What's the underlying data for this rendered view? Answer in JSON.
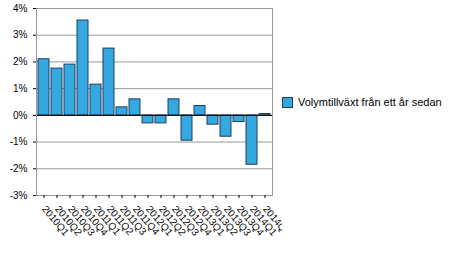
{
  "chart_data": {
    "type": "bar",
    "categories": [
      "2010Q1",
      "2010Q2",
      "2010Q3",
      "2010Q4",
      "2011Q1",
      "2011Q2",
      "2011Q3",
      "2011Q4",
      "2012Q1",
      "2012Q2",
      "2012Q3",
      "2012Q4",
      "2013Q1",
      "2013Q2",
      "2013Q3",
      "2013Q4",
      "2014Q1",
      "2014Q2"
    ],
    "series": [
      {
        "name": "Volymtillväxt från ett år sedan",
        "color": "#35a8e0",
        "values": [
          2.1,
          1.75,
          1.9,
          3.55,
          1.15,
          2.5,
          0.3,
          0.6,
          -0.3,
          -0.3,
          0.6,
          -0.95,
          0.35,
          -0.35,
          -0.8,
          -0.25,
          -1.85,
          0.05
        ]
      }
    ],
    "ylim": [
      -3,
      4
    ],
    "yticks": [
      {
        "value": -3,
        "label": "-3%"
      },
      {
        "value": -2,
        "label": "-2%"
      },
      {
        "value": -1,
        "label": "-1%"
      },
      {
        "value": 0,
        "label": "0%"
      },
      {
        "value": 1,
        "label": "1%"
      },
      {
        "value": 2,
        "label": "2%"
      },
      {
        "value": 3,
        "label": "3%"
      },
      {
        "value": 4,
        "label": "4%"
      }
    ],
    "grid": true,
    "legend": "right"
  }
}
